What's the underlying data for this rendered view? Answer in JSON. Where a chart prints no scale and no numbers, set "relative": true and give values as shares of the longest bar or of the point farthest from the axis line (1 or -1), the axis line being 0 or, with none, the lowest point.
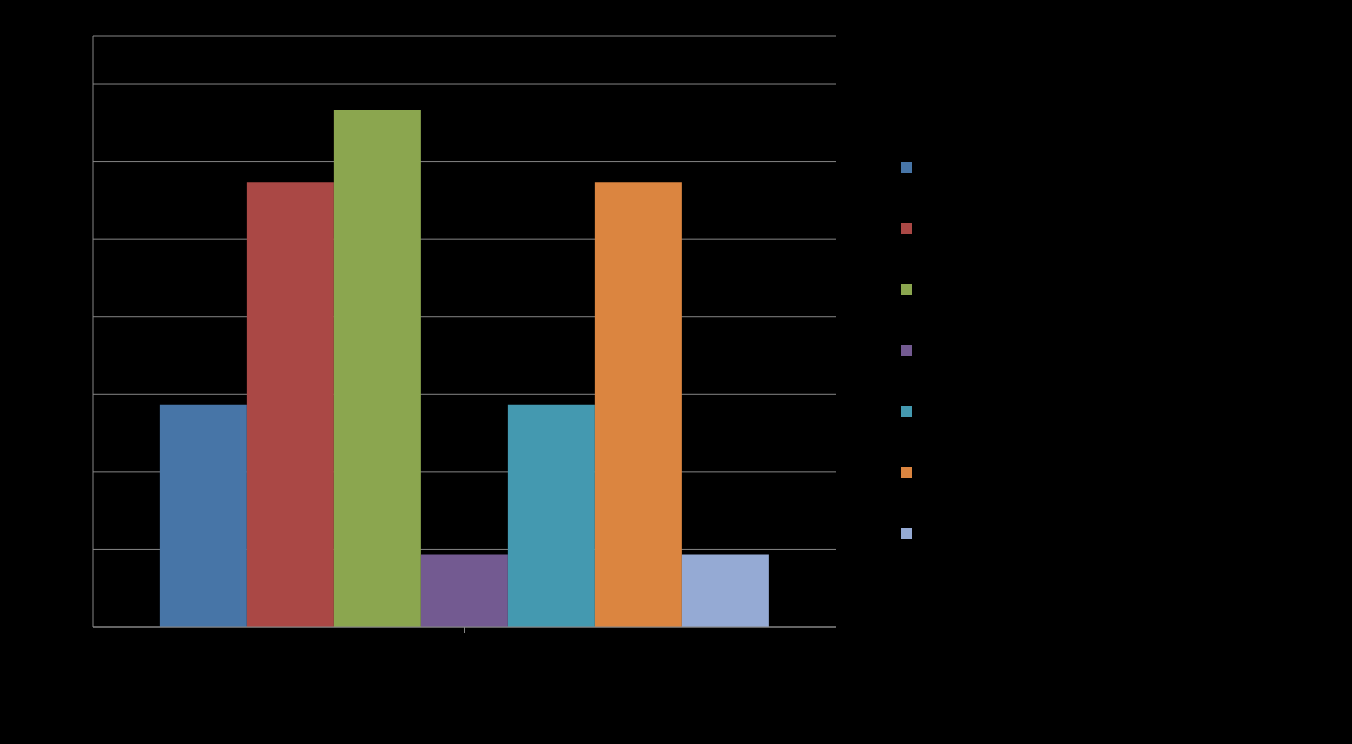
{
  "chart_data": {
    "type": "bar",
    "relative": true,
    "categories": [
      null
    ],
    "series": [
      {
        "color": "#4775a7",
        "values": [
          0.43
        ]
      },
      {
        "color": "#aa4845",
        "values": [
          0.86
        ]
      },
      {
        "color": "#8ba64f",
        "values": [
          1
        ]
      },
      {
        "color": "#735a91",
        "values": [
          0.14
        ]
      },
      {
        "color": "#4499b0",
        "values": [
          0.43
        ]
      },
      {
        "color": "#db8540",
        "values": [
          0.86
        ]
      },
      {
        "color": "#95aad4",
        "values": [
          0.14
        ]
      }
    ],
    "grid": "y"
  }
}
